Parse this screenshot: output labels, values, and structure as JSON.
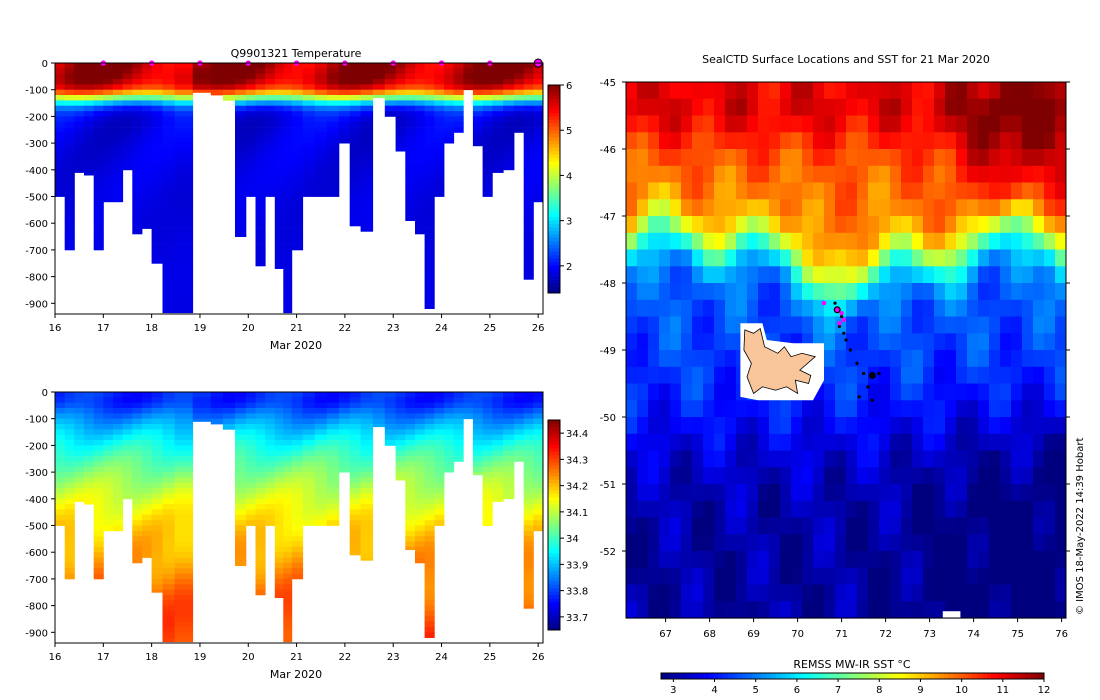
{
  "credit": "© IMOS 18-May-2022 14:39 Hobart",
  "colors": {
    "jet": [
      "#00007f",
      "#0000ff",
      "#007fff",
      "#00ffff",
      "#7fff7f",
      "#ffff00",
      "#ff7f00",
      "#ff0000",
      "#7f0000"
    ],
    "land": "#f9c59b",
    "track": "#000000",
    "marker": "#ff00ff"
  },
  "chart_data": [
    {
      "id": "temperature",
      "type": "heatmap",
      "title": "Q9901321  Temperature",
      "xlabel": "Mar 2020",
      "xlim": [
        16,
        26.1
      ],
      "xticks": [
        16,
        17,
        18,
        19,
        20,
        21,
        22,
        23,
        24,
        25,
        26
      ],
      "ylim": [
        -940,
        0
      ],
      "yticks": [
        0,
        -100,
        -200,
        -300,
        -400,
        -500,
        -600,
        -700,
        -800,
        -900
      ],
      "ytick_labels": [
        "0",
        "-100",
        "-200",
        "-300",
        "-400",
        "-500",
        "-600",
        "-700",
        "-800",
        "-900"
      ],
      "colorbar": {
        "min": 1.4,
        "max": 6.0,
        "ticks": [
          2,
          3,
          4,
          5,
          6
        ]
      },
      "profiles": [
        {
          "day": 16.1,
          "max_depth": 500
        },
        {
          "day": 16.3,
          "max_depth": 700
        },
        {
          "day": 16.5,
          "max_depth": 410
        },
        {
          "day": 16.7,
          "max_depth": 420
        },
        {
          "day": 16.9,
          "max_depth": 700
        },
        {
          "day": 17.1,
          "max_depth": 520
        },
        {
          "day": 17.3,
          "max_depth": 520
        },
        {
          "day": 17.5,
          "max_depth": 400
        },
        {
          "day": 17.7,
          "max_depth": 640
        },
        {
          "day": 17.9,
          "max_depth": 620
        },
        {
          "day": 18.1,
          "max_depth": 750
        },
        {
          "day": 18.35,
          "max_depth": 935
        },
        {
          "day": 18.6,
          "max_depth": 935
        },
        {
          "day": 19.1,
          "max_depth": 110
        },
        {
          "day": 19.35,
          "max_depth": 120
        },
        {
          "day": 19.6,
          "max_depth": 140
        },
        {
          "day": 19.85,
          "max_depth": 650
        },
        {
          "day": 20.05,
          "max_depth": 500
        },
        {
          "day": 20.25,
          "max_depth": 760
        },
        {
          "day": 20.45,
          "max_depth": 500
        },
        {
          "day": 20.65,
          "max_depth": 770
        },
        {
          "day": 20.8,
          "max_depth": 935
        },
        {
          "day": 21.0,
          "max_depth": 700
        },
        {
          "day": 21.25,
          "max_depth": 500
        },
        {
          "day": 21.5,
          "max_depth": 500
        },
        {
          "day": 21.75,
          "max_depth": 500
        },
        {
          "day": 22.0,
          "max_depth": 300
        },
        {
          "day": 22.2,
          "max_depth": 610
        },
        {
          "day": 22.45,
          "max_depth": 630
        },
        {
          "day": 22.7,
          "max_depth": 130
        },
        {
          "day": 22.95,
          "max_depth": 200
        },
        {
          "day": 23.15,
          "max_depth": 330
        },
        {
          "day": 23.35,
          "max_depth": 590
        },
        {
          "day": 23.55,
          "max_depth": 640
        },
        {
          "day": 23.75,
          "max_depth": 920
        },
        {
          "day": 23.95,
          "max_depth": 500
        },
        {
          "day": 24.15,
          "max_depth": 300
        },
        {
          "day": 24.35,
          "max_depth": 260
        },
        {
          "day": 24.55,
          "max_depth": 100
        },
        {
          "day": 24.75,
          "max_depth": 310
        },
        {
          "day": 24.95,
          "max_depth": 500
        },
        {
          "day": 25.15,
          "max_depth": 410
        },
        {
          "day": 25.4,
          "max_depth": 400
        },
        {
          "day": 25.6,
          "max_depth": 260
        },
        {
          "day": 25.8,
          "max_depth": 810
        },
        {
          "day": 26.0,
          "max_depth": 520
        }
      ],
      "surface_markers_day": [
        17,
        18,
        19,
        20,
        21,
        22,
        23,
        24,
        25,
        26
      ]
    },
    {
      "id": "salinity",
      "type": "heatmap",
      "title": "",
      "xlabel": "Mar 2020",
      "xlim": [
        16,
        26.1
      ],
      "xticks": [
        16,
        17,
        18,
        19,
        20,
        21,
        22,
        23,
        24,
        25,
        26
      ],
      "ylim": [
        -940,
        0
      ],
      "yticks": [
        0,
        -100,
        -200,
        -300,
        -400,
        -500,
        -600,
        -700,
        -800,
        -900
      ],
      "ytick_labels": [
        "0",
        "-100",
        "-200",
        "-300",
        "-400",
        "-500",
        "-600",
        "-700",
        "-800",
        "-900"
      ],
      "colorbar": {
        "min": 33.65,
        "max": 34.45,
        "ticks": [
          33.7,
          33.8,
          33.9,
          34,
          34.1,
          34.2,
          34.3,
          34.4
        ]
      }
    },
    {
      "id": "sst_map",
      "type": "heatmap",
      "title": "SealCTD Surface Locations and SST for 21 Mar 2020",
      "xlim": [
        66.1,
        76.1
      ],
      "ylim": [
        -53,
        -45
      ],
      "xticks": [
        67,
        68,
        69,
        70,
        71,
        72,
        73,
        74,
        75,
        76
      ],
      "yticks": [
        -45,
        -46,
        -47,
        -48,
        -49,
        -50,
        -51,
        -52
      ],
      "colorbar": {
        "label": "REMSS MW-IR SST °C",
        "min": 2.7,
        "max": 12.0,
        "ticks": [
          3,
          4,
          5,
          6,
          7,
          8,
          9,
          10,
          11,
          12
        ]
      },
      "track_points": [
        {
          "lon": 70.85,
          "lat": -48.3
        },
        {
          "lon": 70.9,
          "lat": -48.4
        },
        {
          "lon": 71.0,
          "lat": -48.5
        },
        {
          "lon": 70.95,
          "lat": -48.65
        },
        {
          "lon": 71.05,
          "lat": -48.75
        },
        {
          "lon": 71.1,
          "lat": -48.85
        },
        {
          "lon": 71.2,
          "lat": -49.0
        },
        {
          "lon": 71.35,
          "lat": -49.2
        },
        {
          "lon": 71.5,
          "lat": -49.35
        },
        {
          "lon": 71.7,
          "lat": -49.38
        },
        {
          "lon": 71.85,
          "lat": -49.35
        },
        {
          "lon": 71.6,
          "lat": -49.55
        },
        {
          "lon": 71.4,
          "lat": -49.7
        },
        {
          "lon": 71.7,
          "lat": -49.75
        }
      ],
      "magenta_points": [
        {
          "lon": 70.6,
          "lat": -48.3
        },
        {
          "lon": 70.9,
          "lat": -48.4
        },
        {
          "lon": 71.0,
          "lat": -48.45
        },
        {
          "lon": 71.05,
          "lat": -48.55
        },
        {
          "lon": 70.95,
          "lat": -48.6
        }
      ]
    }
  ]
}
